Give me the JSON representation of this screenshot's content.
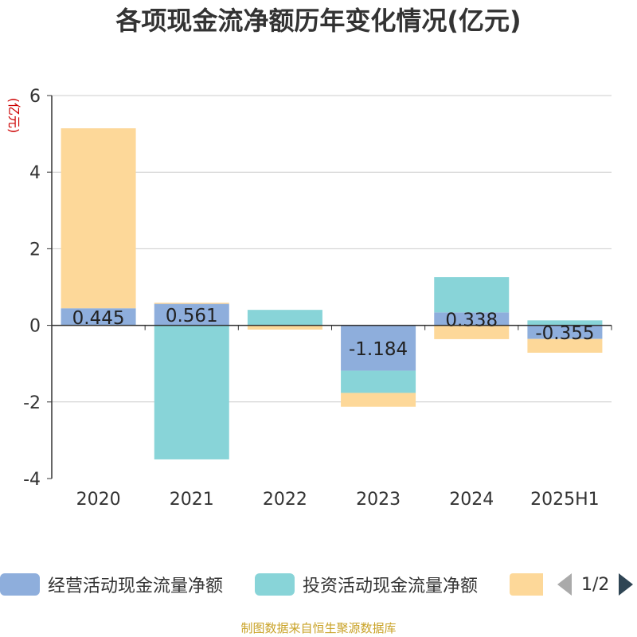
{
  "title": "各项现金流净额历年变化情况(亿元)",
  "source": "制图数据来自恒生聚源数据库",
  "legend": {
    "items": [
      {
        "label": "经营活动现金流量净额",
        "color": "#8eaedc"
      },
      {
        "label": "投资活动现金流量净额",
        "color": "#88d4d8"
      },
      {
        "label": "",
        "color": "#fdd899"
      }
    ],
    "page": "1/2"
  },
  "chart_data": {
    "type": "bar",
    "stacked": true,
    "ylabel": "(亿元)",
    "ylim": [
      -4,
      6
    ],
    "yticks": [
      -4,
      -2,
      0,
      2,
      4,
      6
    ],
    "grid": true,
    "legend_position": "bottom",
    "categories": [
      "2020",
      "2021",
      "2022",
      "2023",
      "2024",
      "2025H1"
    ],
    "series": [
      {
        "name": "经营活动现金流量净额",
        "color": "#8eaedc",
        "values": [
          0.445,
          0.561,
          0.004,
          -1.184,
          0.338,
          -0.355
        ]
      },
      {
        "name": "投资活动现金流量净额",
        "color": "#88d4d8",
        "values": [
          0.0,
          -3.5,
          0.4,
          -0.58,
          0.92,
          0.13
        ]
      },
      {
        "name": "",
        "color": "#fdd899",
        "values": [
          4.7,
          0.03,
          -0.11,
          -0.36,
          -0.36,
          -0.36
        ]
      }
    ],
    "data_labels": [
      "0.445",
      "0.561",
      "",
      "-1.184",
      "0.338",
      "-0.355"
    ]
  }
}
